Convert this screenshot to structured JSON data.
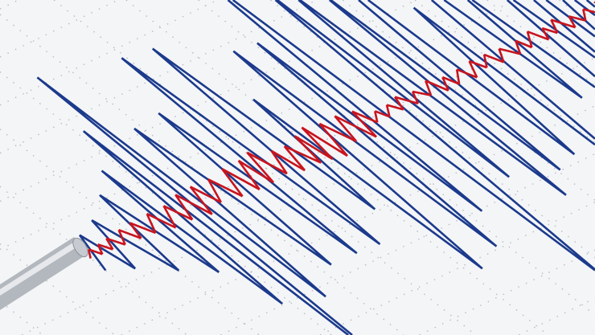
{
  "image": {
    "subject": "seismograph",
    "colors": {
      "background": "#f4f5f7",
      "grid_dots": "#b9bcc4",
      "seismic_trace_red": "#c8141e",
      "seismic_trace_blue": "#1b3a8c",
      "stylus": "#a9adb4"
    }
  }
}
